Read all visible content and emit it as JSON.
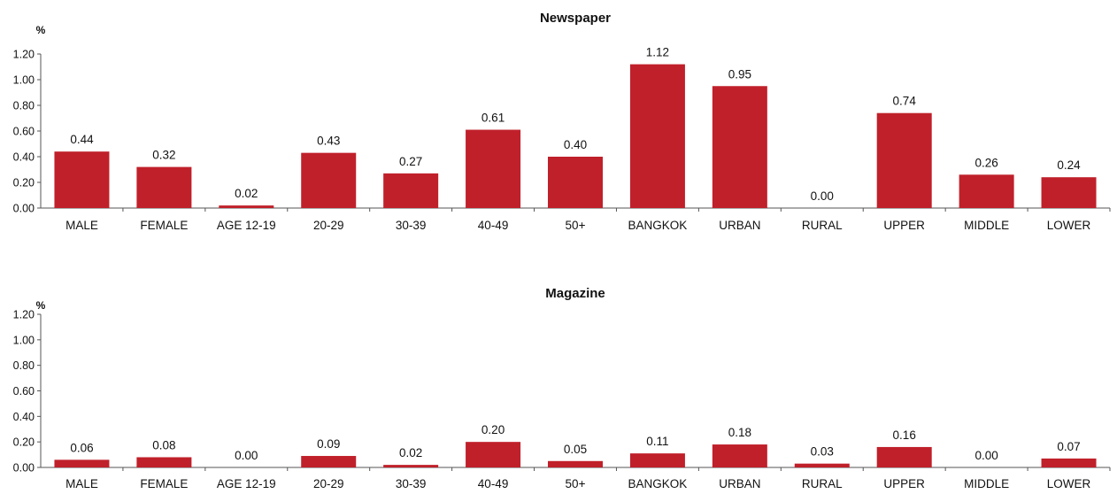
{
  "chart_data": [
    {
      "type": "bar",
      "title": "Newspaper",
      "unit": "%",
      "ylim": [
        0,
        1.2
      ],
      "yticks": [
        "0.00",
        "0.20",
        "0.40",
        "0.60",
        "0.80",
        "1.00",
        "1.20"
      ],
      "categories": [
        "MALE",
        "FEMALE",
        "AGE 12-19",
        "20-29",
        "30-39",
        "40-49",
        "50+",
        "BANGKOK",
        "URBAN",
        "RURAL",
        "UPPER",
        "MIDDLE",
        "LOWER"
      ],
      "values": [
        0.44,
        0.32,
        0.02,
        0.43,
        0.27,
        0.61,
        0.4,
        1.12,
        0.95,
        0.0,
        0.74,
        0.26,
        0.24
      ],
      "value_labels": [
        "0.44",
        "0.32",
        "0.02",
        "0.43",
        "0.27",
        "0.61",
        "0.40",
        "1.12",
        "0.95",
        "0.00",
        "0.74",
        "0.26",
        "0.24"
      ],
      "color": "#C0202A",
      "grid": false,
      "legend": "none"
    },
    {
      "type": "bar",
      "title": "Magazine",
      "unit": "%",
      "ylim": [
        0,
        1.2
      ],
      "yticks": [
        "0.00",
        "0.20",
        "0.40",
        "0.60",
        "0.80",
        "1.00",
        "1.20"
      ],
      "categories": [
        "MALE",
        "FEMALE",
        "AGE 12-19",
        "20-29",
        "30-39",
        "40-49",
        "50+",
        "BANGKOK",
        "URBAN",
        "RURAL",
        "UPPER",
        "MIDDLE",
        "LOWER"
      ],
      "values": [
        0.06,
        0.08,
        0.0,
        0.09,
        0.02,
        0.2,
        0.05,
        0.11,
        0.18,
        0.03,
        0.16,
        0.0,
        0.07
      ],
      "value_labels": [
        "0.06",
        "0.08",
        "0.00",
        "0.09",
        "0.02",
        "0.20",
        "0.05",
        "0.11",
        "0.18",
        "0.03",
        "0.16",
        "0.00",
        "0.07"
      ],
      "color": "#C0202A",
      "grid": false,
      "legend": "none"
    }
  ]
}
